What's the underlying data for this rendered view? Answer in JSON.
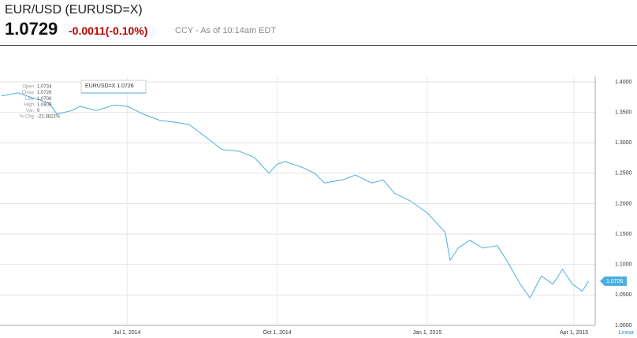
{
  "header": {
    "title": "EUR/USD (EURUSD=X)",
    "price": "1.0729",
    "change": "-0.0011(-0.10%)",
    "note": "CCY - As of 10:14am EDT"
  },
  "stats": [
    [
      "Open",
      "1.0734"
    ],
    [
      "Close",
      "1.0726"
    ],
    [
      "Low",
      "1.0708"
    ],
    [
      "High",
      "1.0806"
    ],
    [
      "Vol.",
      "0"
    ],
    [
      "% Chg",
      "-22.3822%"
    ]
  ],
  "chart_data": {
    "type": "line",
    "x": [
      "2014-04-15",
      "2014-04-25",
      "2014-05-05",
      "2014-05-14",
      "2014-05-19",
      "2014-05-28",
      "2014-06-02",
      "2014-06-12",
      "2014-06-23",
      "2014-07-01",
      "2014-07-11",
      "2014-07-21",
      "2014-07-30",
      "2014-08-08",
      "2014-08-19",
      "2014-08-28",
      "2014-09-08",
      "2014-09-17",
      "2014-09-26",
      "2014-10-01",
      "2014-10-06",
      "2014-10-16",
      "2014-10-24",
      "2014-10-30",
      "2014-11-10",
      "2014-11-18",
      "2014-11-28",
      "2014-12-05",
      "2014-12-12",
      "2014-12-22",
      "2015-01-01",
      "2015-01-12",
      "2015-01-15",
      "2015-01-20",
      "2015-01-27",
      "2015-02-04",
      "2015-02-13",
      "2015-02-20",
      "2015-02-27",
      "2015-03-05",
      "2015-03-12",
      "2015-03-19",
      "2015-03-25",
      "2015-03-31",
      "2015-04-06",
      "2015-04-10"
    ],
    "series": [
      {
        "name": "EURUSD=X",
        "color": "#4aaee0",
        "values": [
          1.377,
          1.382,
          1.373,
          1.366,
          1.347,
          1.353,
          1.36,
          1.353,
          1.362,
          1.36,
          1.347,
          1.337,
          1.334,
          1.33,
          1.308,
          1.289,
          1.286,
          1.276,
          1.25,
          1.265,
          1.269,
          1.26,
          1.25,
          1.234,
          1.239,
          1.247,
          1.234,
          1.239,
          1.217,
          1.204,
          1.185,
          1.153,
          1.107,
          1.127,
          1.14,
          1.127,
          1.131,
          1.101,
          1.068,
          1.045,
          1.081,
          1.068,
          1.092,
          1.068,
          1.056,
          1.0726
        ],
        "last_label": "1.0726",
        "legend_label": "EURUSD=X 1.0726"
      }
    ],
    "xlim": [
      "2014-04-15",
      "2015-04-14"
    ],
    "xticks": [
      {
        "value": "2014-07-01",
        "label": "Jul 1, 2014"
      },
      {
        "value": "2014-10-01",
        "label": "Oct 1, 2014"
      },
      {
        "value": "2015-01-01",
        "label": "Jan 1, 2015"
      },
      {
        "value": "2015-04-01",
        "label": "Apr 1, 2015"
      }
    ],
    "ylim": [
      1.0,
      1.4
    ],
    "yticks": [
      {
        "value": 1.0,
        "label": "1.0000"
      },
      {
        "value": 1.05,
        "label": "1.0500"
      },
      {
        "value": 1.1,
        "label": "1.1000"
      },
      {
        "value": 1.15,
        "label": "1.1500"
      },
      {
        "value": 1.2,
        "label": "1.2000"
      },
      {
        "value": 1.25,
        "label": "1.2500"
      },
      {
        "value": 1.3,
        "label": "1.3000"
      },
      {
        "value": 1.35,
        "label": "1.3500"
      },
      {
        "value": 1.4,
        "label": "1.4000"
      }
    ],
    "scale_label": "Linear",
    "grid": true
  }
}
